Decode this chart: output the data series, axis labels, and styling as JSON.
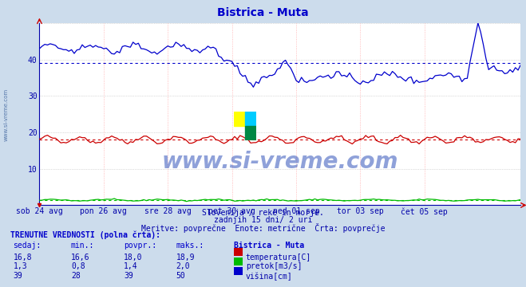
{
  "title": "Bistrica - Muta",
  "title_color": "#0000cc",
  "bg_color": "#ccdcec",
  "plot_bg_color": "#ffffff",
  "grid_color_v": "#ffaaaa",
  "grid_color_h": "#cccccc",
  "xlim": [
    0,
    180
  ],
  "ylim": [
    0,
    50
  ],
  "yticks": [
    10,
    20,
    30,
    40
  ],
  "xtick_labels": [
    "sob 24 avg",
    "pon 26 avg",
    "sre 28 avg",
    "pet 30 avg",
    "ned 01 sep",
    "tor 03 sep",
    "čet 05 sep"
  ],
  "xtick_positions": [
    0,
    24,
    48,
    72,
    96,
    120,
    144
  ],
  "avg_temp": 18.0,
  "avg_pretok": 1.4,
  "avg_visina": 39,
  "line_temp_color": "#cc0000",
  "line_pretok_color": "#00bb00",
  "line_visina_color": "#0000cc",
  "logo_colors": [
    "#ffff00",
    "#00ccff",
    "#008844"
  ],
  "watermark": "www.si-vreme.com",
  "watermark_color": "#3355aa",
  "side_text": "www.si-vreme.com",
  "sub1": "Slovenija / reke in morje.",
  "sub2": "zadnjih 15 dni/ 2 uri",
  "sub3": "Meritve: povprečne  Enote: metrične  Črta: povprečje",
  "table_header": "TRENUTNE VREDNOSTI (polna črta):",
  "col_headers": [
    "sedaj:",
    "min.:",
    "povpr.:",
    "maks.:",
    "Bistrica - Muta"
  ],
  "row1": [
    "16,8",
    "16,6",
    "18,0",
    "18,9",
    "temperatura[C]"
  ],
  "row2": [
    "1,3",
    "0,8",
    "1,4",
    "2,0",
    "pretok[m3/s]"
  ],
  "row3": [
    "39",
    "28",
    "39",
    "50",
    "višina[cm]"
  ],
  "color_temp": "#cc0000",
  "color_pretok": "#00bb00",
  "color_visina": "#0000cc"
}
